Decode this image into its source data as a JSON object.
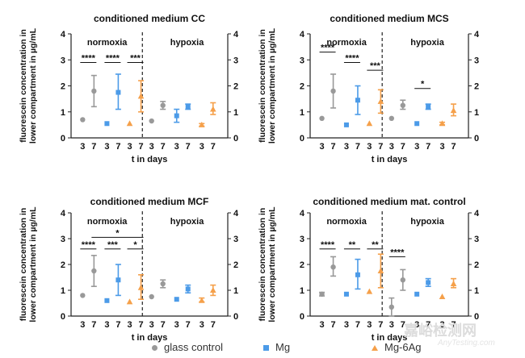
{
  "chart_data": [
    {
      "type": "scatter",
      "title": "conditioned medium CC",
      "ylabel": "fluorescein concentration in lower compartment in µg/mL",
      "xlabel": "t in days",
      "ylim": [
        0,
        4
      ],
      "yticks": [
        "0",
        "1",
        "2",
        "3",
        "4"
      ],
      "conditions": [
        "normoxia",
        "hypoxia"
      ],
      "x_tick_labels": [
        "3",
        "7"
      ],
      "points": [
        {
          "condition": "normoxia",
          "series": "glass control",
          "day": 3,
          "y": 0.7,
          "lo": 0.7,
          "hi": 0.7
        },
        {
          "condition": "normoxia",
          "series": "glass control",
          "day": 7,
          "y": 1.8,
          "lo": 1.2,
          "hi": 2.4
        },
        {
          "condition": "normoxia",
          "series": "Mg",
          "day": 3,
          "y": 0.55,
          "lo": 0.55,
          "hi": 0.55
        },
        {
          "condition": "normoxia",
          "series": "Mg",
          "day": 7,
          "y": 1.75,
          "lo": 1.1,
          "hi": 2.45
        },
        {
          "condition": "normoxia",
          "series": "Mg-6Ag",
          "day": 3,
          "y": 0.55,
          "lo": 0.55,
          "hi": 0.55
        },
        {
          "condition": "normoxia",
          "series": "Mg-6Ag",
          "day": 7,
          "y": 1.6,
          "lo": 1.0,
          "hi": 2.2
        },
        {
          "condition": "hypoxia",
          "series": "glass control",
          "day": 3,
          "y": 0.65,
          "lo": 0.65,
          "hi": 0.65
        },
        {
          "condition": "hypoxia",
          "series": "glass control",
          "day": 7,
          "y": 1.25,
          "lo": 1.1,
          "hi": 1.4
        },
        {
          "condition": "hypoxia",
          "series": "Mg",
          "day": 3,
          "y": 0.85,
          "lo": 0.6,
          "hi": 1.1
        },
        {
          "condition": "hypoxia",
          "series": "Mg",
          "day": 7,
          "y": 1.2,
          "lo": 1.1,
          "hi": 1.3
        },
        {
          "condition": "hypoxia",
          "series": "Mg-6Ag",
          "day": 3,
          "y": 0.5,
          "lo": 0.45,
          "hi": 0.55
        },
        {
          "condition": "hypoxia",
          "series": "Mg-6Ag",
          "day": 7,
          "y": 1.1,
          "lo": 0.9,
          "hi": 1.35
        }
      ],
      "significance": [
        {
          "condition": "normoxia",
          "series": "glass control",
          "label": "****",
          "y": 2.9
        },
        {
          "condition": "normoxia",
          "series": "Mg",
          "label": "****",
          "y": 2.9
        },
        {
          "condition": "normoxia",
          "series": "Mg-6Ag",
          "label": "***",
          "y": 2.9
        }
      ]
    },
    {
      "type": "scatter",
      "title": "conditioned medium MCS",
      "ylabel": "fluorescein concentration in lower compartment in µg/mL",
      "xlabel": "t in days",
      "ylim": [
        0,
        4
      ],
      "yticks": [
        "0",
        "1",
        "2",
        "3",
        "4"
      ],
      "conditions": [
        "normoxia",
        "hypoxia"
      ],
      "x_tick_labels": [
        "3",
        "7"
      ],
      "points": [
        {
          "condition": "normoxia",
          "series": "glass control",
          "day": 3,
          "y": 0.75,
          "lo": 0.75,
          "hi": 0.75
        },
        {
          "condition": "normoxia",
          "series": "glass control",
          "day": 7,
          "y": 1.8,
          "lo": 1.15,
          "hi": 2.45
        },
        {
          "condition": "normoxia",
          "series": "Mg",
          "day": 3,
          "y": 0.5,
          "lo": 0.5,
          "hi": 0.5
        },
        {
          "condition": "normoxia",
          "series": "Mg",
          "day": 7,
          "y": 1.45,
          "lo": 0.9,
          "hi": 2.0
        },
        {
          "condition": "normoxia",
          "series": "Mg-6Ag",
          "day": 3,
          "y": 0.55,
          "lo": 0.55,
          "hi": 0.55
        },
        {
          "condition": "normoxia",
          "series": "Mg-6Ag",
          "day": 7,
          "y": 1.4,
          "lo": 0.95,
          "hi": 1.85
        },
        {
          "condition": "hypoxia",
          "series": "glass control",
          "day": 3,
          "y": 0.75,
          "lo": 0.75,
          "hi": 0.75
        },
        {
          "condition": "hypoxia",
          "series": "glass control",
          "day": 7,
          "y": 1.25,
          "lo": 1.1,
          "hi": 1.45
        },
        {
          "condition": "hypoxia",
          "series": "Mg",
          "day": 3,
          "y": 0.55,
          "lo": 0.55,
          "hi": 0.55
        },
        {
          "condition": "hypoxia",
          "series": "Mg",
          "day": 7,
          "y": 1.2,
          "lo": 1.1,
          "hi": 1.3
        },
        {
          "condition": "hypoxia",
          "series": "Mg-6Ag",
          "day": 3,
          "y": 0.55,
          "lo": 0.5,
          "hi": 0.6
        },
        {
          "condition": "hypoxia",
          "series": "Mg-6Ag",
          "day": 7,
          "y": 1.05,
          "lo": 0.85,
          "hi": 1.3
        }
      ],
      "significance": [
        {
          "condition": "normoxia",
          "series": "glass control",
          "label": "****",
          "y": 3.3
        },
        {
          "condition": "normoxia",
          "series": "Mg",
          "label": "****",
          "y": 2.9
        },
        {
          "condition": "normoxia",
          "series": "Mg-6Ag",
          "label": "***",
          "y": 2.6
        },
        {
          "condition": "hypoxia",
          "series": "Mg",
          "label": "*",
          "y": 1.9
        }
      ]
    },
    {
      "type": "scatter",
      "title": "conditioned medium MCF",
      "ylabel": "fluorescein concentration in lower compartment in µg/mL",
      "xlabel": "t in days",
      "ylim": [
        0,
        4
      ],
      "yticks": [
        "0",
        "1",
        "2",
        "3",
        "4"
      ],
      "conditions": [
        "normoxia",
        "hypoxia"
      ],
      "x_tick_labels": [
        "3",
        "7"
      ],
      "points": [
        {
          "condition": "normoxia",
          "series": "glass control",
          "day": 3,
          "y": 0.8,
          "lo": 0.8,
          "hi": 0.8
        },
        {
          "condition": "normoxia",
          "series": "glass control",
          "day": 7,
          "y": 1.75,
          "lo": 1.15,
          "hi": 2.35
        },
        {
          "condition": "normoxia",
          "series": "Mg",
          "day": 3,
          "y": 0.6,
          "lo": 0.6,
          "hi": 0.6
        },
        {
          "condition": "normoxia",
          "series": "Mg",
          "day": 7,
          "y": 1.4,
          "lo": 0.8,
          "hi": 2.0
        },
        {
          "condition": "normoxia",
          "series": "Mg-6Ag",
          "day": 3,
          "y": 0.55,
          "lo": 0.55,
          "hi": 0.55
        },
        {
          "condition": "normoxia",
          "series": "Mg-6Ag",
          "day": 7,
          "y": 1.1,
          "lo": 0.65,
          "hi": 1.6
        },
        {
          "condition": "hypoxia",
          "series": "glass control",
          "day": 3,
          "y": 0.75,
          "lo": 0.75,
          "hi": 0.75
        },
        {
          "condition": "hypoxia",
          "series": "glass control",
          "day": 7,
          "y": 1.25,
          "lo": 1.1,
          "hi": 1.4
        },
        {
          "condition": "hypoxia",
          "series": "Mg",
          "day": 3,
          "y": 0.65,
          "lo": 0.65,
          "hi": 0.65
        },
        {
          "condition": "hypoxia",
          "series": "Mg",
          "day": 7,
          "y": 1.05,
          "lo": 0.9,
          "hi": 1.2
        },
        {
          "condition": "hypoxia",
          "series": "Mg-6Ag",
          "day": 3,
          "y": 0.6,
          "lo": 0.55,
          "hi": 0.7
        },
        {
          "condition": "hypoxia",
          "series": "Mg-6Ag",
          "day": 7,
          "y": 1.0,
          "lo": 0.8,
          "hi": 1.2
        }
      ],
      "significance": [
        {
          "condition": "normoxia",
          "series": "glass control",
          "label": "****",
          "y": 2.6
        },
        {
          "condition": "normoxia",
          "series": "Mg",
          "label": "***",
          "y": 2.6
        },
        {
          "condition": "normoxia",
          "series": "Mg-6Ag",
          "label": "*",
          "y": 2.6
        }
      ],
      "wide_significance": {
        "label": "*",
        "y": 3.05,
        "from_series": "glass control",
        "to_series": "Mg-6Ag",
        "day": 7
      }
    },
    {
      "type": "scatter",
      "title": "conditioned medium mat. control",
      "ylabel": "fluorescein concentration in lower compartment in µg/mL",
      "xlabel": "t in days",
      "ylim": [
        0,
        4
      ],
      "yticks": [
        "0",
        "1",
        "2",
        "3",
        "4"
      ],
      "conditions": [
        "normoxia",
        "hypoxia"
      ],
      "x_tick_labels": [
        "3",
        "7"
      ],
      "points": [
        {
          "condition": "normoxia",
          "series": "glass control",
          "day": 3,
          "y": 0.85,
          "lo": 0.78,
          "hi": 0.92
        },
        {
          "condition": "normoxia",
          "series": "glass control",
          "day": 7,
          "y": 1.9,
          "lo": 1.55,
          "hi": 2.3
        },
        {
          "condition": "normoxia",
          "series": "Mg",
          "day": 3,
          "y": 0.85,
          "lo": 0.85,
          "hi": 0.85
        },
        {
          "condition": "normoxia",
          "series": "Mg",
          "day": 7,
          "y": 1.6,
          "lo": 1.05,
          "hi": 2.2
        },
        {
          "condition": "normoxia",
          "series": "Mg-6Ag",
          "day": 3,
          "y": 0.95,
          "lo": 0.95,
          "hi": 0.95
        },
        {
          "condition": "normoxia",
          "series": "Mg-6Ag",
          "day": 7,
          "y": 1.75,
          "lo": 1.1,
          "hi": 2.4
        },
        {
          "condition": "hypoxia",
          "series": "glass control",
          "day": 3,
          "y": 0.35,
          "lo": 0.0,
          "hi": 0.7
        },
        {
          "condition": "hypoxia",
          "series": "glass control",
          "day": 7,
          "y": 1.4,
          "lo": 1.0,
          "hi": 1.8
        },
        {
          "condition": "hypoxia",
          "series": "Mg",
          "day": 3,
          "y": 0.85,
          "lo": 0.85,
          "hi": 0.85
        },
        {
          "condition": "hypoxia",
          "series": "Mg",
          "day": 7,
          "y": 1.3,
          "lo": 1.15,
          "hi": 1.45
        },
        {
          "condition": "hypoxia",
          "series": "Mg-6Ag",
          "day": 3,
          "y": 0.75,
          "lo": 0.75,
          "hi": 0.75
        },
        {
          "condition": "hypoxia",
          "series": "Mg-6Ag",
          "day": 7,
          "y": 1.25,
          "lo": 1.1,
          "hi": 1.45
        }
      ],
      "significance": [
        {
          "condition": "normoxia",
          "series": "glass control",
          "label": "****",
          "y": 2.6
        },
        {
          "condition": "normoxia",
          "series": "Mg",
          "label": "**",
          "y": 2.6
        },
        {
          "condition": "normoxia",
          "series": "Mg-6Ag",
          "label": "**",
          "y": 2.6
        },
        {
          "condition": "hypoxia",
          "series": "glass control",
          "label": "****",
          "y": 2.3
        }
      ]
    }
  ],
  "legend": [
    {
      "name": "glass control",
      "marker": "circle",
      "color": "#999999"
    },
    {
      "name": "Mg",
      "marker": "square",
      "color": "#4c9be8"
    },
    {
      "name": "Mg-6Ag",
      "marker": "triangle",
      "color": "#f5a04a"
    }
  ],
  "watermark": {
    "text": "嘉峪检测网",
    "subtext": "AnyTesting.com"
  }
}
